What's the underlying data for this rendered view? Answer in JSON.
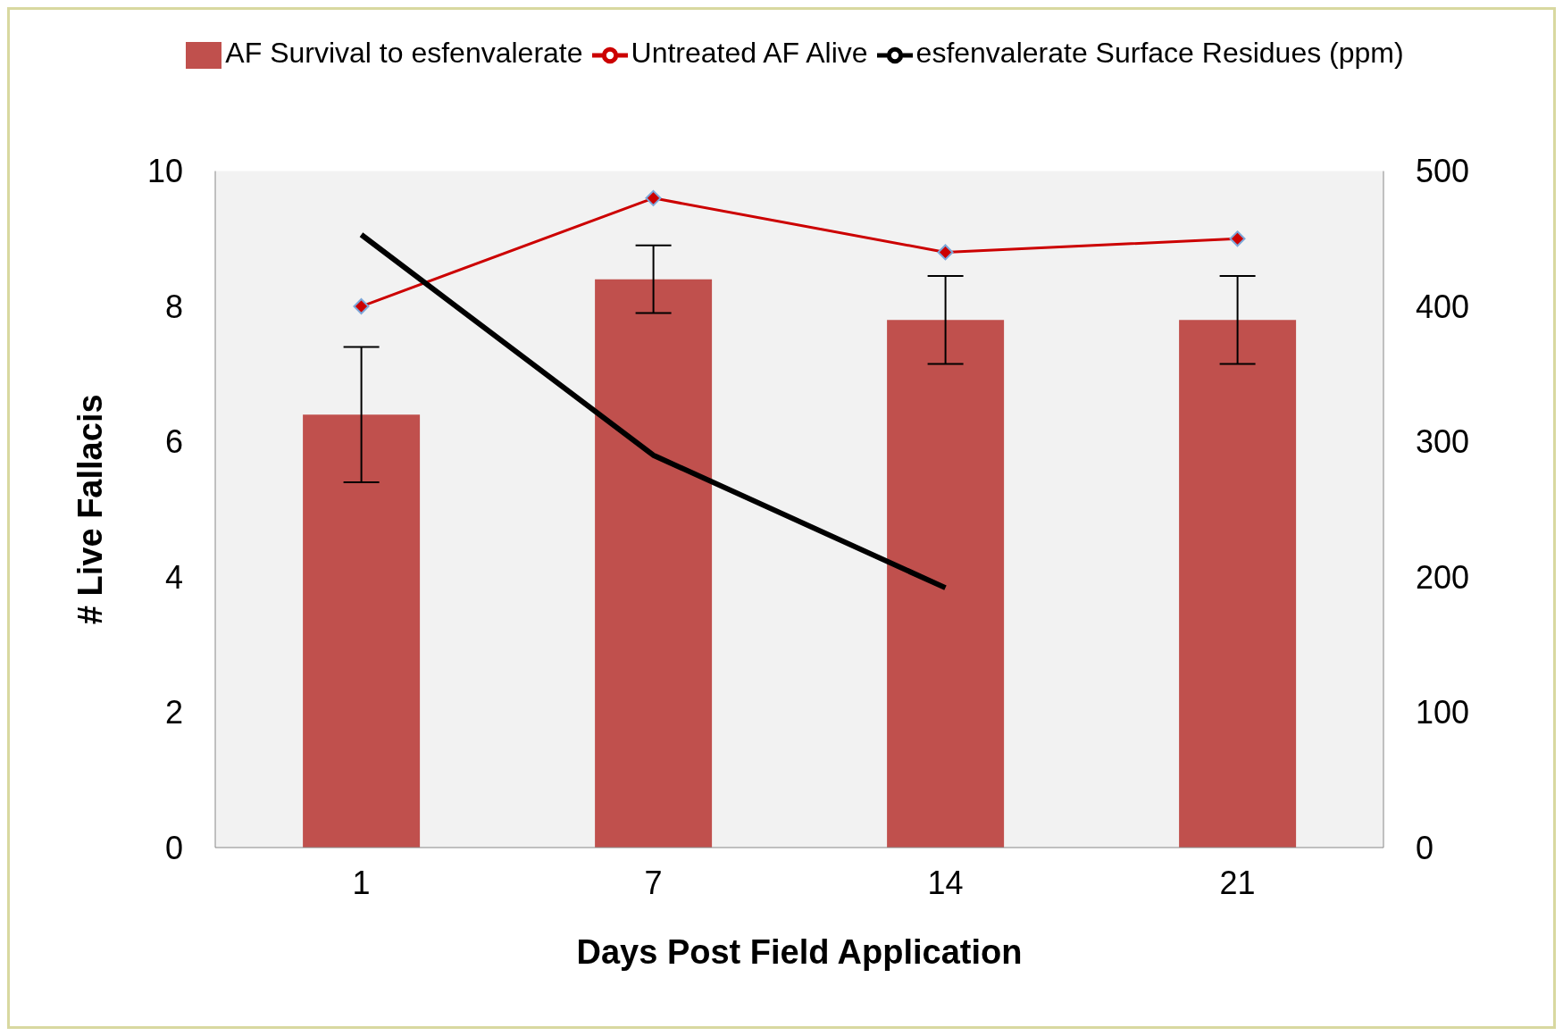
{
  "chart_data": {
    "type": "bar",
    "xlabel": "Days Post Field Application",
    "ylabel": "# Live  Fallacis",
    "categories": [
      "1",
      "7",
      "14",
      "21"
    ],
    "series": [
      {
        "name": "AF Survival to esfenvalerate",
        "color": "#c0504d",
        "values": [
          6.4,
          8.4,
          7.8,
          7.8
        ],
        "errors": [
          1.0,
          0.5,
          0.65,
          0.65
        ]
      },
      {
        "name": "Untreated AF Alive",
        "type": "line",
        "color": "#cc0000",
        "marker": "diamond",
        "values": [
          8.0,
          9.6,
          8.8,
          9.0
        ]
      },
      {
        "name": "esfenvalerate Surface Residues (ppm)",
        "type": "line",
        "color": "#000000",
        "axis": "y2",
        "values": [
          453,
          290,
          192,
          null
        ]
      }
    ],
    "ylim": [
      0,
      10
    ],
    "yticks": [
      0,
      2,
      4,
      6,
      8,
      10
    ],
    "y2lim": [
      0,
      500
    ],
    "y2ticks": [
      0,
      100,
      200,
      300,
      400,
      500
    ],
    "legend": "top",
    "line_style": "solid"
  }
}
